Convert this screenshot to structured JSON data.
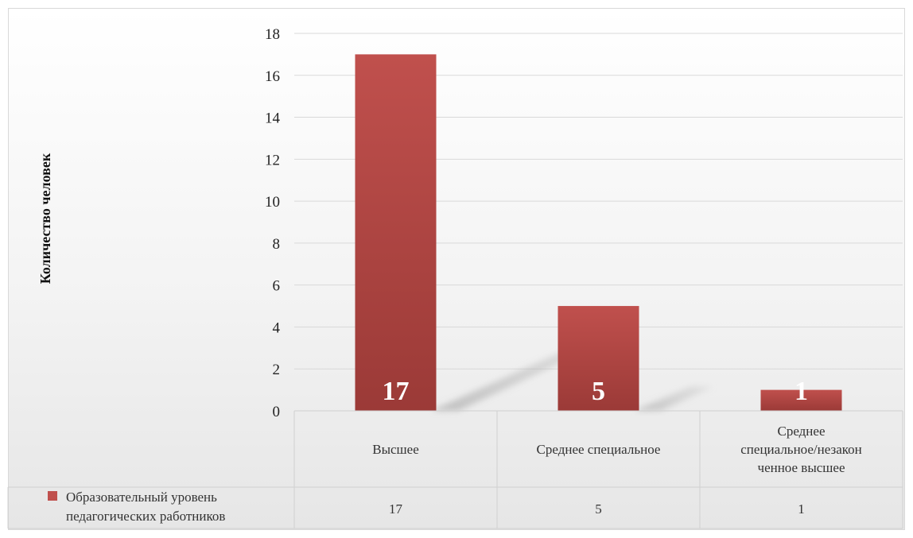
{
  "chart_data": {
    "type": "bar",
    "categories": [
      "Высшее",
      "Среднее специальное",
      "Среднее специальное/незаконченное высшее"
    ],
    "category_lines": [
      [
        "Высшее"
      ],
      [
        "Среднее специальное"
      ],
      [
        "Среднее",
        "специальное/незакон",
        "ченное высшее"
      ]
    ],
    "series": [
      {
        "name": "Образовательный уровень педагогических работников",
        "name_lines": [
          "Образовательный уровень",
          "педагогических работников"
        ],
        "values": [
          17,
          5,
          1
        ]
      }
    ],
    "value_labels": [
      "17",
      "5",
      "1"
    ],
    "table_values": [
      "17",
      "5",
      "1"
    ],
    "ylabel": "Количество человек",
    "ylim": [
      0,
      18
    ],
    "yticks": [
      "0",
      "2",
      "4",
      "6",
      "8",
      "10",
      "12",
      "14",
      "16",
      "18"
    ],
    "grid": true,
    "data_table": true,
    "bar_color": "#c0504d",
    "bar_color_dark": "#9b3a37"
  }
}
